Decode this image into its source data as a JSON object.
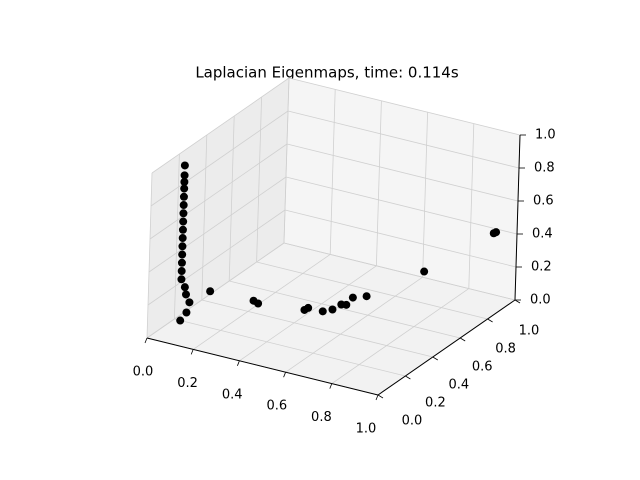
{
  "chart_data": {
    "type": "scatter3d",
    "title": "Laplacian Eigenmaps, time: 0.114s",
    "color": "#000000",
    "grid": true,
    "x": [
      0.1,
      0.1,
      0.1,
      0.1,
      0.1,
      0.1,
      0.1,
      0.1,
      0.1,
      0.1,
      0.1,
      0.1,
      0.1,
      0.1,
      0.1,
      0.11,
      0.11,
      0.12,
      0.12,
      0.1,
      0.15,
      0.28,
      0.3,
      0.5,
      0.51,
      0.55,
      0.58,
      0.6,
      0.61,
      0.62,
      0.65,
      0.75,
      0.9,
      0.91
    ],
    "y": [
      0.07,
      0.07,
      0.07,
      0.07,
      0.07,
      0.07,
      0.07,
      0.07,
      0.07,
      0.07,
      0.07,
      0.07,
      0.07,
      0.07,
      0.07,
      0.08,
      0.09,
      0.1,
      0.08,
      0.07,
      0.2,
      0.3,
      0.3,
      0.3,
      0.31,
      0.35,
      0.37,
      0.4,
      0.42,
      0.45,
      0.5,
      0.75,
      1.0,
      1.0
    ],
    "z": [
      1.04,
      0.98,
      0.94,
      0.9,
      0.85,
      0.8,
      0.75,
      0.7,
      0.65,
      0.6,
      0.55,
      0.5,
      0.45,
      0.4,
      0.35,
      0.3,
      0.25,
      0.2,
      0.15,
      0.1,
      0.22,
      0.15,
      0.14,
      0.17,
      0.18,
      0.15,
      0.16,
      0.18,
      0.17,
      0.2,
      0.19,
      0.23,
      0.37,
      0.38
    ],
    "xlim": [
      0,
      1
    ],
    "ylim": [
      0,
      1
    ],
    "zlim": [
      0,
      1
    ],
    "xticks": [
      {
        "value": 0,
        "label": "0.0"
      },
      {
        "value": 0.2,
        "label": "0.2"
      },
      {
        "value": 0.4,
        "label": "0.4"
      },
      {
        "value": 0.6,
        "label": "0.6"
      },
      {
        "value": 0.8,
        "label": "0.8"
      },
      {
        "value": 1,
        "label": "1.0"
      }
    ],
    "yticks": [
      {
        "value": 0,
        "label": "0.0"
      },
      {
        "value": 0.2,
        "label": "0.2"
      },
      {
        "value": 0.4,
        "label": "0.4"
      },
      {
        "value": 0.6,
        "label": "0.6"
      },
      {
        "value": 0.8,
        "label": "0.8"
      },
      {
        "value": 1,
        "label": "1.0"
      }
    ],
    "zticks": [
      {
        "value": 0,
        "label": "0.0"
      },
      {
        "value": 0.2,
        "label": "0.2"
      },
      {
        "value": 0.4,
        "label": "0.4"
      },
      {
        "value": 0.6,
        "label": "0.6"
      },
      {
        "value": 0.8,
        "label": "0.8"
      },
      {
        "value": 1,
        "label": "1.0"
      }
    ]
  }
}
